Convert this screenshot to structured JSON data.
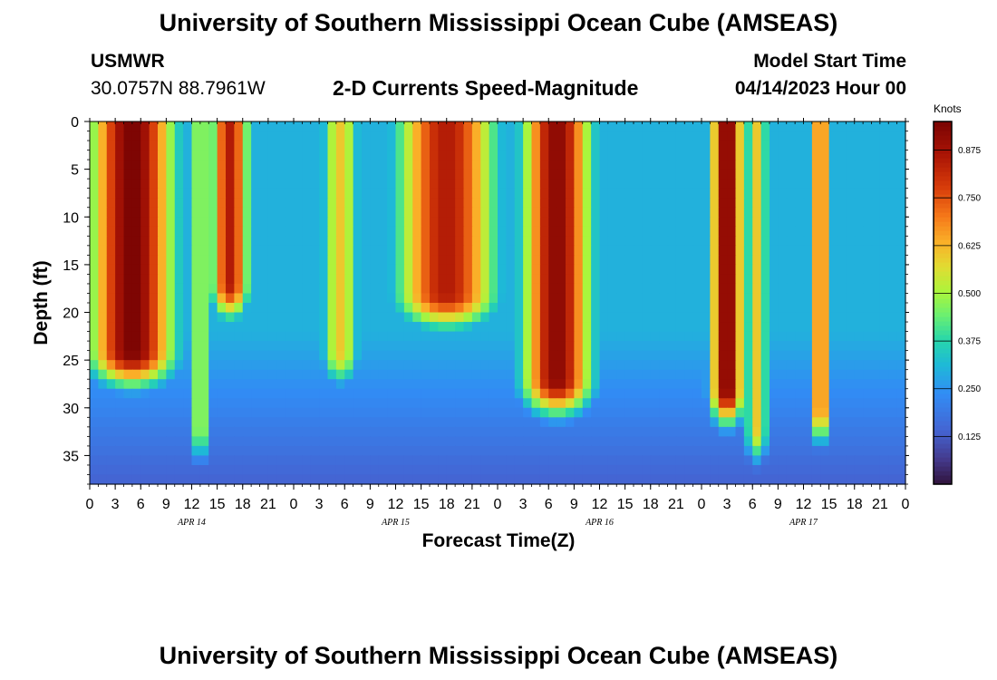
{
  "header": {
    "title": "University of Southern Mississippi Ocean Cube (AMSEAS)",
    "station_id": "USMWR",
    "station_coords": "30.0757N  88.7961W",
    "plot_title": "2-D Currents Speed-Magnitude",
    "model_start_label": "Model Start Time",
    "model_start_value": "04/14/2023 Hour 00"
  },
  "footer": {
    "title": "University of Southern Mississippi Ocean Cube (AMSEAS)"
  },
  "chart_data": {
    "type": "heatmap",
    "title": "2-D Currents Speed-Magnitude",
    "xlabel": "Forecast Time(Z)",
    "ylabel": "Depth (ft)",
    "x_range_hours": [
      0,
      96
    ],
    "x_tick_step_hours": 3,
    "x_tick_labels": [
      "0",
      "3",
      "6",
      "9",
      "12",
      "15",
      "18",
      "21",
      "0",
      "3",
      "6",
      "9",
      "12",
      "15",
      "18",
      "21",
      "0",
      "3",
      "6",
      "9",
      "12",
      "15",
      "18",
      "21",
      "0",
      "3",
      "6",
      "9",
      "12",
      "15",
      "18",
      "21",
      "0"
    ],
    "day_labels": [
      {
        "label": "APR 14",
        "hour": 12
      },
      {
        "label": "APR 15",
        "hour": 36
      },
      {
        "label": "APR 16",
        "hour": 60
      },
      {
        "label": "APR 17",
        "hour": 84
      }
    ],
    "y_range_ft": [
      0,
      38
    ],
    "y_ticks": [
      0,
      5,
      10,
      15,
      20,
      25,
      30,
      35
    ],
    "y_tick_labels": [
      "0",
      "5",
      "10",
      "15",
      "20",
      "25",
      "30",
      "35"
    ],
    "y_inverted": true,
    "colorbar": {
      "unit": "Knots",
      "min": 0,
      "max": 0.95,
      "ticks": [
        0.125,
        0.25,
        0.375,
        0.5,
        0.625,
        0.75,
        0.875
      ],
      "tick_labels": [
        "0.125",
        "0.250",
        "0.375",
        "0.500",
        "0.625",
        "0.750",
        "0.875"
      ],
      "colormap": "turbo-like"
    },
    "speed_features_knots": [
      {
        "center_hour": 5.0,
        "half_width_hours": 5.5,
        "peak": 0.95,
        "bottom_depth_ft": 24
      },
      {
        "center_hour": 13.0,
        "half_width_hours": 1.2,
        "peak": 0.55,
        "bottom_depth_ft": 32
      },
      {
        "center_hour": 16.5,
        "half_width_hours": 2.5,
        "peak": 0.85,
        "bottom_depth_ft": 17
      },
      {
        "center_hour": 29.5,
        "half_width_hours": 2.5,
        "peak": 0.6,
        "bottom_depth_ft": 24
      },
      {
        "center_hour": 42.0,
        "half_width_hours": 6.5,
        "peak": 0.85,
        "bottom_depth_ft": 18
      },
      {
        "center_hour": 55.0,
        "half_width_hours": 4.5,
        "peak": 0.92,
        "bottom_depth_ft": 27
      },
      {
        "center_hour": 75.0,
        "half_width_hours": 2.2,
        "peak": 0.95,
        "bottom_depth_ft": 28
      },
      {
        "center_hour": 78.5,
        "half_width_hours": 1.5,
        "peak": 0.6,
        "bottom_depth_ft": 32
      },
      {
        "center_hour": 86.0,
        "half_width_hours": 1.3,
        "peak": 0.75,
        "bottom_depth_ft": 30
      }
    ]
  }
}
